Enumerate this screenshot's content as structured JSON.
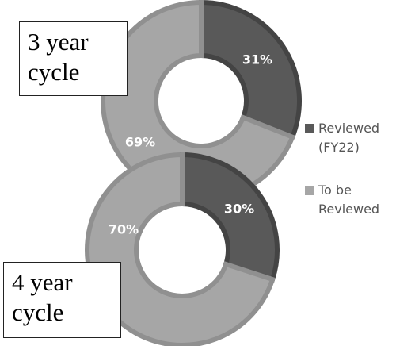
{
  "legend": {
    "entries": [
      {
        "name": "Reviewed (FY22)",
        "color": "#595959"
      },
      {
        "name": "To be Reviewed",
        "color": "#a6a6a6"
      }
    ]
  },
  "chart_data": [
    {
      "type": "pie",
      "title": "3 year cycle",
      "values": [
        31,
        69
      ],
      "value_labels": [
        "31%",
        "69%"
      ]
    },
    {
      "type": "pie",
      "title": "4 year cycle",
      "values": [
        30,
        70
      ],
      "value_labels": [
        "30%",
        "70%"
      ]
    }
  ]
}
